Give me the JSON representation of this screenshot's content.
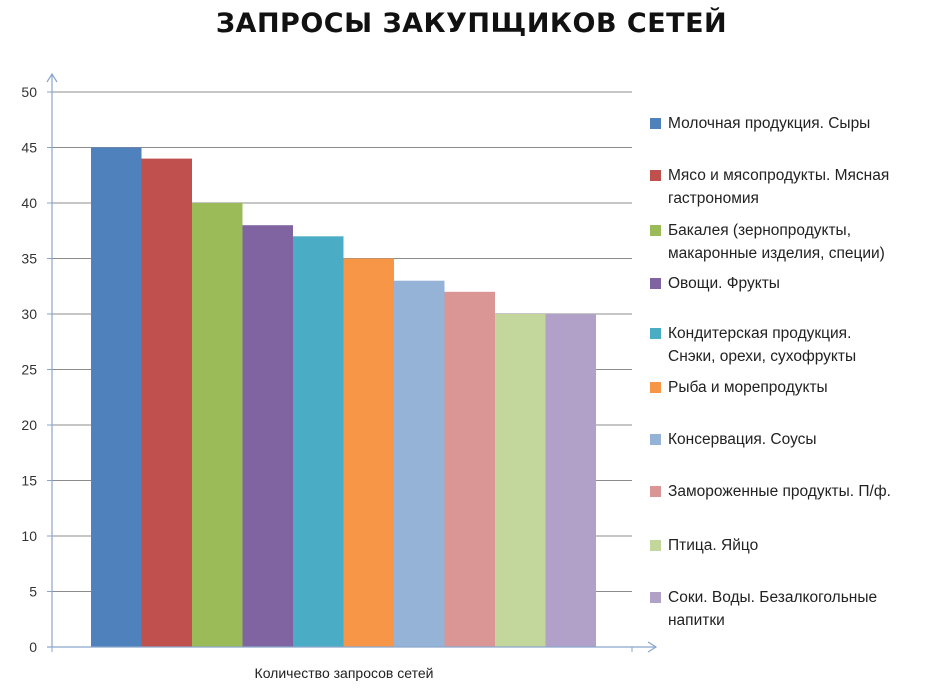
{
  "chart_data": {
    "type": "bar",
    "title": "ЗАПРОСЫ ЗАКУПЩИКОВ СЕТЕЙ",
    "xlabel": "Количество запросов сетей",
    "ylabel": "",
    "ylim": [
      0,
      50
    ],
    "yticks": [
      0,
      5,
      10,
      15,
      20,
      25,
      30,
      35,
      40,
      45,
      50
    ],
    "grid": true,
    "legend_position": "right",
    "series": [
      {
        "name": "Молочная продукция. Сыры",
        "value": 45,
        "color": "#4F81BD"
      },
      {
        "name": "Мясо и мясопродукты. Мясная гастрономия",
        "value": 44,
        "color": "#C0504D"
      },
      {
        "name": "Бакалея (зернопродукты, макаронные изделия, специи)",
        "value": 40,
        "color": "#9BBB59"
      },
      {
        "name": "Овощи. Фрукты",
        "value": 38,
        "color": "#8064A2"
      },
      {
        "name": "Кондитерская продукция. Снэки, орехи, сухофрукты",
        "value": 37,
        "color": "#4BACC6"
      },
      {
        "name": "Рыба и морепродукты",
        "value": 35,
        "color": "#F79646"
      },
      {
        "name": "Консервация. Соусы",
        "value": 33,
        "color": "#95B3D7"
      },
      {
        "name": "Замороженные продукты. П/ф.",
        "value": 32,
        "color": "#DA9694"
      },
      {
        "name": "Птица. Яйцо",
        "value": 30,
        "color": "#C3D69B"
      },
      {
        "name": "Соки. Воды. Безалкогольные напитки",
        "value": 30,
        "color": "#B1A0C7"
      }
    ]
  },
  "legend_lines": [
    [
      "Молочная продукция. Сыры"
    ],
    [
      "Мясо и мясопродукты. Мясная",
      "гастрономия"
    ],
    [
      "Бакалея (зернопродукты,",
      "макаронные изделия, специи)"
    ],
    [
      "Овощи. Фрукты"
    ],
    [
      "Кондитерская продукция.",
      "Снэки, орехи, сухофрукты"
    ],
    [
      "Рыба и морепродукты"
    ],
    [
      "Консервация. Соусы"
    ],
    [
      "Замороженные продукты. П/ф."
    ],
    [
      "Птица. Яйцо"
    ],
    [
      "Соки. Воды. Безалкогольные",
      "напитки"
    ]
  ]
}
